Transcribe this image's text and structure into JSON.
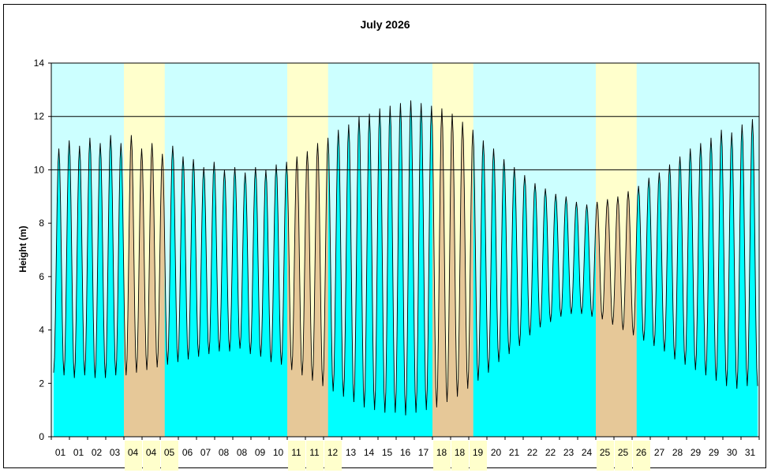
{
  "chart_data": {
    "type": "area",
    "title": "July 2026",
    "xlabel": "",
    "ylabel": "Height (m)",
    "ylim": [
      0,
      14
    ],
    "yticks": [
      0,
      2,
      4,
      6,
      8,
      10,
      12,
      14
    ],
    "grid_y": [
      10,
      12
    ],
    "grid_y_color": "#000000",
    "colors": {
      "background_band": "#ccffff",
      "highlight_band": "#ffffcc",
      "fill_normal": "#00ffff",
      "fill_highlight": "#e6c898",
      "line": "#000000"
    },
    "x_tick_labels": [
      "01",
      "01",
      "02",
      "03",
      "04",
      "04",
      "05",
      "06",
      "07",
      "08",
      "08",
      "09",
      "10",
      "11",
      "11",
      "12",
      "13",
      "14",
      "15",
      "16",
      "17",
      "18",
      "18",
      "19",
      "20",
      "21",
      "22",
      "22",
      "23",
      "24",
      "25",
      "25",
      "26",
      "27",
      "28",
      "29",
      "29",
      "30",
      "31"
    ],
    "highlight_tick_labels": [
      4,
      5,
      6,
      13,
      14,
      15,
      21,
      22,
      23,
      30,
      31,
      32
    ],
    "highlight_periods": [
      {
        "start_tick": 4,
        "end_tick": 6.25
      },
      {
        "start_tick": 13,
        "end_tick": 15.25
      },
      {
        "start_tick": 21,
        "end_tick": 23.25
      },
      {
        "start_tick": 30,
        "end_tick": 32.25
      }
    ],
    "series": [
      {
        "high_water": [
          10.8,
          11.1,
          10.9,
          11.2,
          11.0,
          11.3,
          11.0,
          11.3,
          10.8,
          11.0,
          10.6,
          10.9,
          10.5,
          10.4,
          10.1,
          10.3,
          10.0,
          10.1,
          9.9,
          10.1,
          10.0,
          10.2,
          10.3,
          10.5,
          10.7,
          11.0,
          11.2,
          11.5,
          11.7,
          12.0,
          12.1,
          12.3,
          12.4,
          12.5,
          12.6,
          12.5,
          12.4,
          12.3,
          12.1,
          11.8,
          11.5,
          11.1,
          10.8,
          10.4,
          10.1,
          9.8,
          9.5,
          9.3,
          9.1,
          9.0,
          8.8,
          8.7,
          8.8,
          8.9,
          9.0,
          9.2,
          9.4,
          9.7,
          9.9,
          10.2,
          10.5,
          10.8,
          11.0,
          11.2,
          11.5,
          11.4,
          11.7,
          11.9
        ],
        "low_water": [
          2.4,
          2.3,
          2.2,
          2.3,
          2.2,
          2.2,
          2.3,
          2.3,
          2.4,
          2.5,
          2.6,
          2.7,
          2.8,
          2.9,
          3.0,
          3.1,
          3.2,
          3.2,
          3.3,
          3.1,
          3.0,
          2.8,
          2.7,
          2.5,
          2.3,
          2.1,
          1.9,
          1.7,
          1.5,
          1.3,
          1.1,
          1.0,
          0.9,
          0.9,
          0.8,
          0.9,
          1.0,
          1.1,
          1.3,
          1.5,
          1.8,
          2.1,
          2.4,
          2.8,
          3.1,
          3.4,
          3.8,
          4.1,
          4.3,
          4.5,
          4.6,
          4.6,
          4.5,
          4.4,
          4.2,
          4.0,
          3.8,
          3.6,
          3.4,
          3.2,
          2.9,
          2.7,
          2.5,
          2.3,
          2.1,
          1.9,
          1.8,
          1.9
        ]
      }
    ]
  }
}
